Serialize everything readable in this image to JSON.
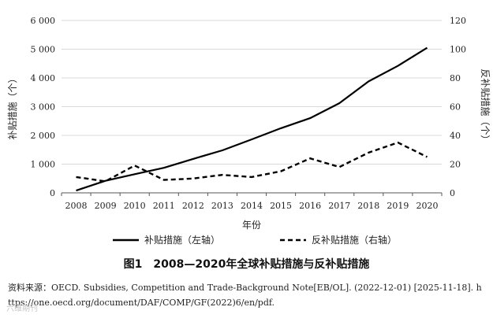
{
  "chart_data": {
    "type": "line",
    "title": "图1　2008—2020年全球补贴措施与反补贴措施",
    "xlabel": "年份",
    "ylabel_left": "补贴措施（个）",
    "ylabel_right": "反补贴措施（个）",
    "x": [
      "2008",
      "2009",
      "2010",
      "2011",
      "2012",
      "2013",
      "2014",
      "2015",
      "2016",
      "2017",
      "2018",
      "2019",
      "2020"
    ],
    "ylim_left": [
      0,
      6000
    ],
    "yticks_left": [
      0,
      1000,
      2000,
      3000,
      4000,
      5000,
      6000
    ],
    "ytick_labels_left": [
      "0",
      "1 000",
      "2 000",
      "3 000",
      "4 000",
      "5 000",
      "6 000"
    ],
    "ylim_right": [
      0,
      120
    ],
    "yticks_right": [
      0,
      20,
      40,
      60,
      80,
      100,
      120
    ],
    "ytick_labels_right": [
      "0",
      "20",
      "40",
      "60",
      "80",
      "100",
      "120"
    ],
    "grid": true,
    "legend_position": "bottom",
    "series": [
      {
        "name": "补贴措施（左轴）",
        "axis": "left",
        "style": "solid",
        "values": [
          80,
          420,
          650,
          870,
          1180,
          1480,
          1860,
          2250,
          2600,
          3120,
          3880,
          4420,
          5050
        ]
      },
      {
        "name": "反补贴措施（右轴）",
        "axis": "right",
        "style": "dashed",
        "values": [
          11,
          8,
          19,
          9,
          10,
          12.5,
          11,
          15,
          24,
          18,
          28,
          35,
          25
        ]
      }
    ]
  },
  "source_text": "资料来源：OECD. Subsidies, Competition and Trade-Background Note[EB/OL]. (2022-12-01) [2025-11-18]. https://one.oecd.org/document/DAF/COMP/GF(2022)6/en/pdf.",
  "watermark_text": "六维期刊"
}
